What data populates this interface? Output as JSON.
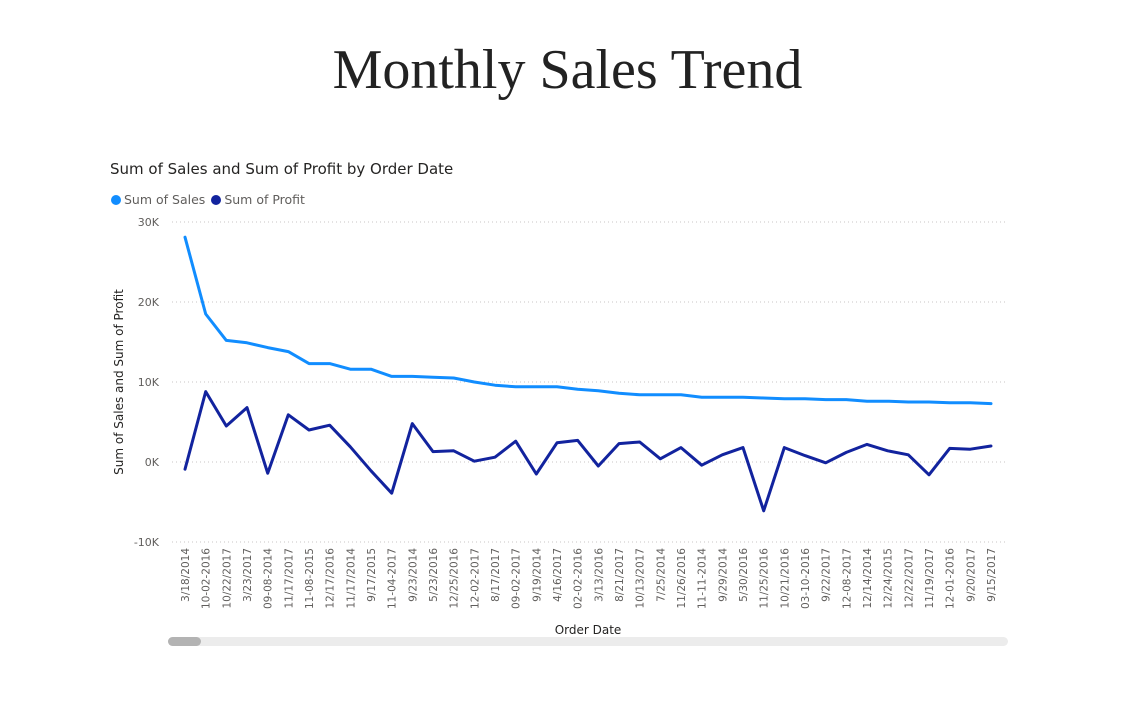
{
  "page": {
    "title": "Monthly Sales Trend"
  },
  "chart_data": {
    "type": "line",
    "title": "Sum of Sales and Sum of Profit by Order Date",
    "xlabel": "Order Date",
    "ylabel": "Sum of Sales and Sum of Profit",
    "ylim": [
      -10000,
      30000
    ],
    "yticks": [
      30000,
      20000,
      10000,
      0,
      -10000
    ],
    "ytick_labels": [
      "30K",
      "20K",
      "10K",
      "0K",
      "-10K"
    ],
    "grid": true,
    "legend_position": "top-left",
    "categories": [
      "3/18/2014",
      "10-02-2016",
      "10/22/2017",
      "3/23/2017",
      "09-08-2014",
      "11/17/2017",
      "11-08-2015",
      "12/17/2016",
      "11/17/2014",
      "9/17/2015",
      "11-04-2017",
      "9/23/2014",
      "5/23/2016",
      "12/25/2016",
      "12-02-2017",
      "8/17/2017",
      "09-02-2017",
      "9/19/2014",
      "4/16/2017",
      "02-02-2016",
      "3/13/2016",
      "8/21/2017",
      "10/13/2017",
      "7/25/2014",
      "11/26/2016",
      "11-11-2014",
      "9/29/2014",
      "5/30/2016",
      "11/25/2016",
      "10/21/2016",
      "03-10-2016",
      "9/22/2017",
      "12-08-2017",
      "12/14/2014",
      "12/24/2015",
      "12/22/2017",
      "11/19/2017",
      "12-01-2016",
      "9/20/2017",
      "9/15/2017"
    ],
    "series": [
      {
        "name": "Sum of Sales",
        "color": "#118dff",
        "values": [
          28100,
          18500,
          15200,
          14900,
          14300,
          13800,
          12300,
          12300,
          11600,
          11600,
          10700,
          10700,
          10600,
          10500,
          10000,
          9600,
          9400,
          9400,
          9400,
          9100,
          8900,
          8600,
          8400,
          8400,
          8400,
          8100,
          8100,
          8100,
          8000,
          7900,
          7900,
          7800,
          7800,
          7600,
          7600,
          7500,
          7500,
          7400,
          7400,
          7300
        ]
      },
      {
        "name": "Sum of Profit",
        "color": "#12239e",
        "values": [
          -900,
          8800,
          4500,
          6800,
          -1400,
          5900,
          4000,
          4600,
          1900,
          -1100,
          -3900,
          4800,
          1300,
          1400,
          100,
          600,
          2600,
          -1500,
          2400,
          2700,
          -500,
          2300,
          2500,
          400,
          1800,
          -400,
          900,
          1800,
          -6100,
          1800,
          800,
          -100,
          1200,
          2200,
          1400,
          900,
          -1600,
          1700,
          1600,
          2000
        ]
      }
    ]
  }
}
